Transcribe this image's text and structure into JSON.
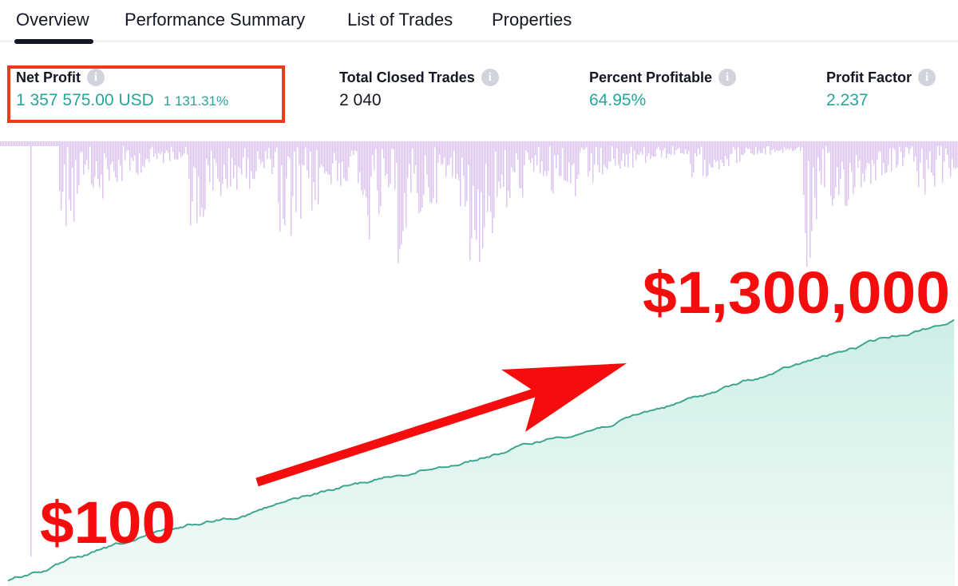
{
  "tabs": [
    "Overview",
    "Performance Summary",
    "List of Trades",
    "Properties"
  ],
  "metrics": [
    {
      "label": "Net Profit",
      "value": "1 357 575.00 USD",
      "percent": "1 131.31%"
    },
    {
      "label": "Total Closed Trades",
      "value": "2 040"
    },
    {
      "label": "Percent Profitable",
      "value": "64.95%"
    },
    {
      "label": "Profit Factor",
      "value": "2.237"
    }
  ],
  "annotations": {
    "end": "$1,300,000",
    "start": "$100"
  }
}
